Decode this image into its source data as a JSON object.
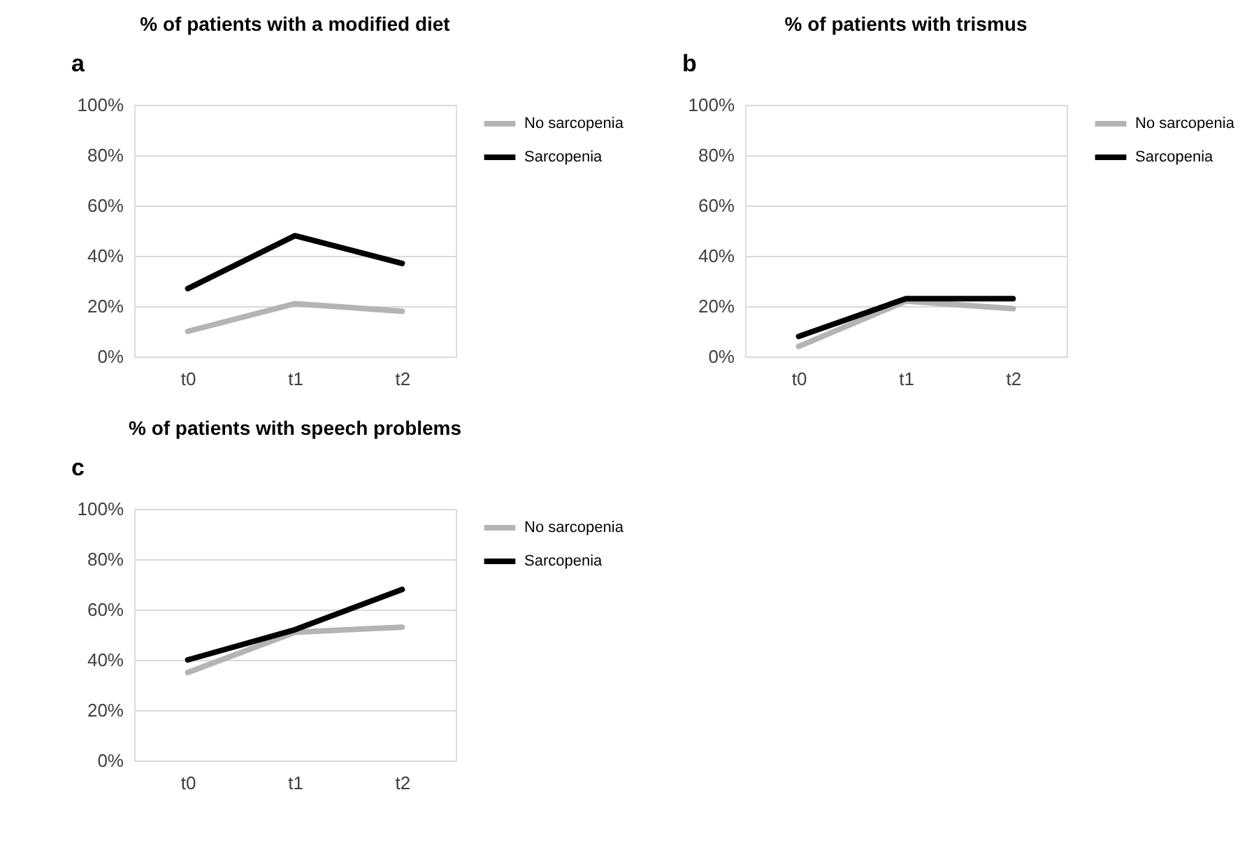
{
  "chart_data": [
    {
      "type": "line",
      "title": "% of patients with a modified diet",
      "annotations": [
        "a"
      ],
      "categories": [
        "t0",
        "t1",
        "t2"
      ],
      "ylim": [
        0,
        100
      ],
      "yticks": [
        {
          "value": 0,
          "label": "0%"
        },
        {
          "value": 20,
          "label": "20%"
        },
        {
          "value": 40,
          "label": "40%"
        },
        {
          "value": 60,
          "label": "60%"
        },
        {
          "value": 80,
          "label": "80%"
        },
        {
          "value": 100,
          "label": "100%"
        }
      ],
      "grid": "y",
      "legend": "right",
      "marker": "none",
      "line_style": "solid",
      "series": [
        {
          "name": "No sarcopenia",
          "color": "#b4b4b4",
          "values": [
            10,
            21,
            18
          ]
        },
        {
          "name": "Sarcopenia",
          "color": "#000000",
          "values": [
            27,
            48,
            37
          ]
        }
      ]
    },
    {
      "type": "line",
      "title": "% of patients with trismus",
      "annotations": [
        "b"
      ],
      "categories": [
        "t0",
        "t1",
        "t2"
      ],
      "ylim": [
        0,
        100
      ],
      "yticks": [
        {
          "value": 0,
          "label": "0%"
        },
        {
          "value": 20,
          "label": "20%"
        },
        {
          "value": 40,
          "label": "40%"
        },
        {
          "value": 60,
          "label": "60%"
        },
        {
          "value": 80,
          "label": "80%"
        },
        {
          "value": 100,
          "label": "100%"
        }
      ],
      "grid": "y",
      "legend": "right",
      "marker": "none",
      "line_style": "solid",
      "series": [
        {
          "name": "No sarcopenia",
          "color": "#b4b4b4",
          "values": [
            4,
            22,
            19
          ]
        },
        {
          "name": "Sarcopenia",
          "color": "#000000",
          "values": [
            8,
            23,
            23
          ]
        }
      ]
    },
    {
      "type": "line",
      "title": "% of patients with speech problems",
      "annotations": [
        "c"
      ],
      "categories": [
        "t0",
        "t1",
        "t2"
      ],
      "ylim": [
        0,
        100
      ],
      "yticks": [
        {
          "value": 0,
          "label": "0%"
        },
        {
          "value": 20,
          "label": "20%"
        },
        {
          "value": 40,
          "label": "40%"
        },
        {
          "value": 60,
          "label": "60%"
        },
        {
          "value": 80,
          "label": "80%"
        },
        {
          "value": 100,
          "label": "100%"
        }
      ],
      "grid": "y",
      "legend": "right",
      "marker": "none",
      "line_style": "solid",
      "series": [
        {
          "name": "No sarcopenia",
          "color": "#b4b4b4",
          "values": [
            35,
            51,
            53
          ]
        },
        {
          "name": "Sarcopenia",
          "color": "#000000",
          "values": [
            40,
            52,
            68
          ]
        }
      ]
    }
  ]
}
